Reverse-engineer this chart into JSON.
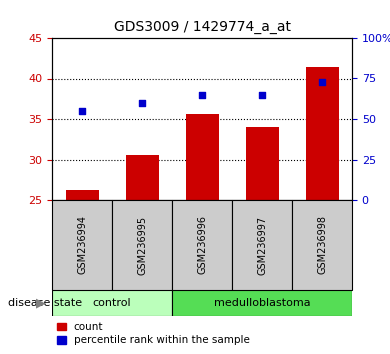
{
  "title": "GDS3009 / 1429774_a_at",
  "samples": [
    "GSM236994",
    "GSM236995",
    "GSM236996",
    "GSM236997",
    "GSM236998"
  ],
  "bar_values": [
    26.2,
    30.6,
    35.6,
    34.0,
    41.4
  ],
  "percentile_values": [
    55,
    60,
    65,
    65,
    73
  ],
  "left_ylim": [
    25,
    45
  ],
  "right_ylim": [
    0,
    100
  ],
  "left_yticks": [
    25,
    30,
    35,
    40,
    45
  ],
  "right_yticks": [
    0,
    25,
    50,
    75,
    100
  ],
  "right_yticklabels": [
    "0",
    "25",
    "50",
    "75",
    "100%"
  ],
  "bar_color": "#cc0000",
  "dot_color": "#0000cc",
  "control_color": "#bbffbb",
  "medulloblastoma_color": "#55dd55",
  "label_bg_color": "#cccccc",
  "left_tick_color": "#cc0000",
  "right_tick_color": "#0000cc",
  "dotted_lines": [
    30,
    35,
    40
  ],
  "legend_labels": [
    "count",
    "percentile rank within the sample"
  ],
  "group_label": "disease state"
}
